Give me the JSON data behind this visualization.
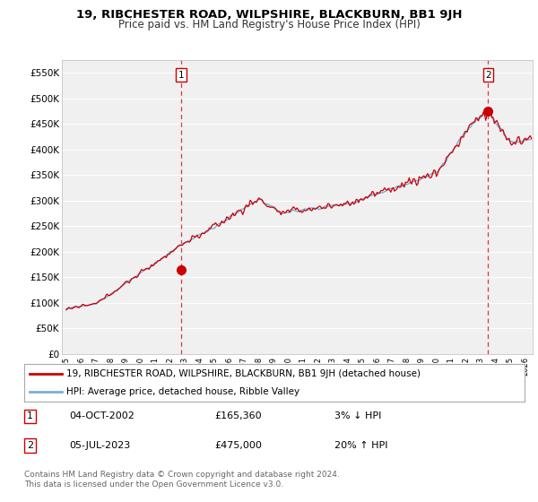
{
  "title": "19, RIBCHESTER ROAD, WILPSHIRE, BLACKBURN, BB1 9JH",
  "subtitle": "Price paid vs. HM Land Registry's House Price Index (HPI)",
  "ylim": [
    0,
    575000
  ],
  "yticks": [
    0,
    50000,
    100000,
    150000,
    200000,
    250000,
    300000,
    350000,
    400000,
    450000,
    500000,
    550000
  ],
  "ytick_labels": [
    "£0",
    "£50K",
    "£100K",
    "£150K",
    "£200K",
    "£250K",
    "£300K",
    "£350K",
    "£400K",
    "£450K",
    "£500K",
    "£550K"
  ],
  "background_color": "#ffffff",
  "plot_bg_color": "#f0f0f0",
  "grid_color": "#ffffff",
  "sale1_x": 2002.75,
  "sale1_y": 165360,
  "sale2_x": 2023.5,
  "sale2_y": 475000,
  "sale_color": "#cc0000",
  "hpi_color": "#7aaedb",
  "dashed_color": "#cc0000",
  "legend_label1": "19, RIBCHESTER ROAD, WILPSHIRE, BLACKBURN, BB1 9JH (detached house)",
  "legend_label2": "HPI: Average price, detached house, Ribble Valley",
  "footer": "Contains HM Land Registry data © Crown copyright and database right 2024.\nThis data is licensed under the Open Government Licence v3.0.",
  "title_fontsize": 9.5,
  "subtitle_fontsize": 8.5,
  "tick_fontsize": 7.5,
  "legend_fontsize": 7.5,
  "xmin": 1994.7,
  "xmax": 2026.5
}
